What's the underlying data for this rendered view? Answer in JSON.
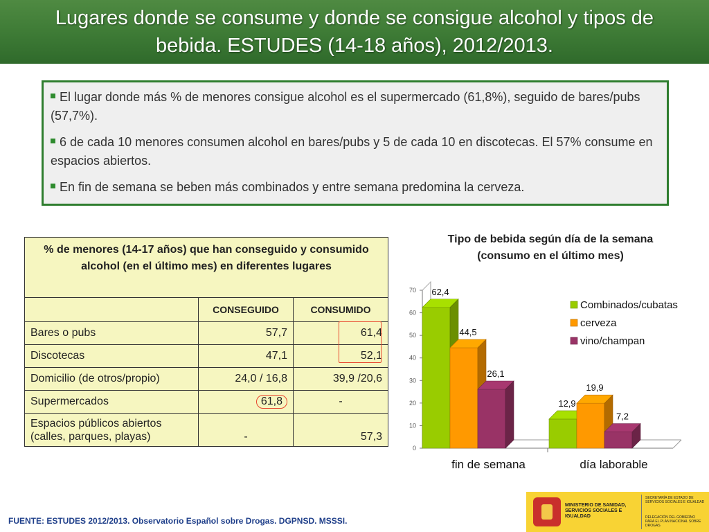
{
  "title": {
    "line1": "Lugares donde se consume y donde se consigue alcohol y tipos de",
    "line2": "bebida. ESTUDES (14-18 años), 2012/2013."
  },
  "bullets": [
    "El lugar donde más % de menores consigue alcohol es el supermercado (61,8%), seguido de bares/pubs (57,7%).",
    "6 de cada 10 menores consumen alcohol en bares/pubs y 5 de cada 10 en discotecas. El 57% consume en espacios abiertos.",
    "En fin de semana se beben más combinados y entre semana predomina la cerveza."
  ],
  "table": {
    "header": "% de menores (14-17 años) que han conseguido y consumido alcohol (en el último mes) en diferentes lugares",
    "columns": [
      "",
      "CONSEGUIDO",
      "CONSUMIDO"
    ],
    "rows": [
      {
        "place": "Bares o pubs",
        "conseguido": "57,7",
        "consumido": "61,4"
      },
      {
        "place": "Discotecas",
        "conseguido": "47,1",
        "consumido": "52,1"
      },
      {
        "place": "Domicilio (de otros/propio)",
        "conseguido": "24,0 / 16,8",
        "consumido": "39,9 /20,6"
      },
      {
        "place": "Supermercados",
        "conseguido": "61,8",
        "consumido": "-"
      },
      {
        "place_line1": "Espacios públicos abiertos",
        "place_line2": "(calles, parques, playas)",
        "conseguido": "-",
        "consumido": "57,3"
      }
    ]
  },
  "chart_data": {
    "type": "bar",
    "title": "Tipo de bebida según día de la semana",
    "subtitle": "(consumo en el último mes)",
    "categories": [
      "fin de semana",
      "día laborable"
    ],
    "series": [
      {
        "name": "Combinados/cubatas",
        "values": [
          62.4,
          12.9
        ],
        "labels": [
          "62,4",
          "12,9"
        ],
        "color": "#99cc00"
      },
      {
        "name": "cerveza",
        "values": [
          44.5,
          19.9
        ],
        "labels": [
          "44,5",
          "19,9"
        ],
        "color": "#ff9900"
      },
      {
        "name": "vino/champan",
        "values": [
          26.1,
          7.2
        ],
        "labels": [
          "26,1",
          "7,2"
        ],
        "color": "#993366"
      }
    ],
    "ylim": [
      0,
      70
    ],
    "yticks": [
      "0",
      "10",
      "20",
      "30",
      "40",
      "50",
      "60",
      "70"
    ],
    "legend_position": "top-right",
    "bar_style": "3d"
  },
  "footer": "FUENTE: ESTUDES 2012/2013. Observatorio Español sobre Drogas. DGPNSD. MSSSI.",
  "logo": {
    "ministry": "MINISTERIO DE SANIDAD, SERVICIOS SOCIALES E IGUALDAD",
    "secretaria": "SECRETARÍA DE ESTADO DE SERVICIOS SOCIALES E IGUALDAD",
    "delegacion": "DELEGACIÓN DEL GOBIERNO PARA EL PLAN NACIONAL SOBRE DROGAS"
  }
}
